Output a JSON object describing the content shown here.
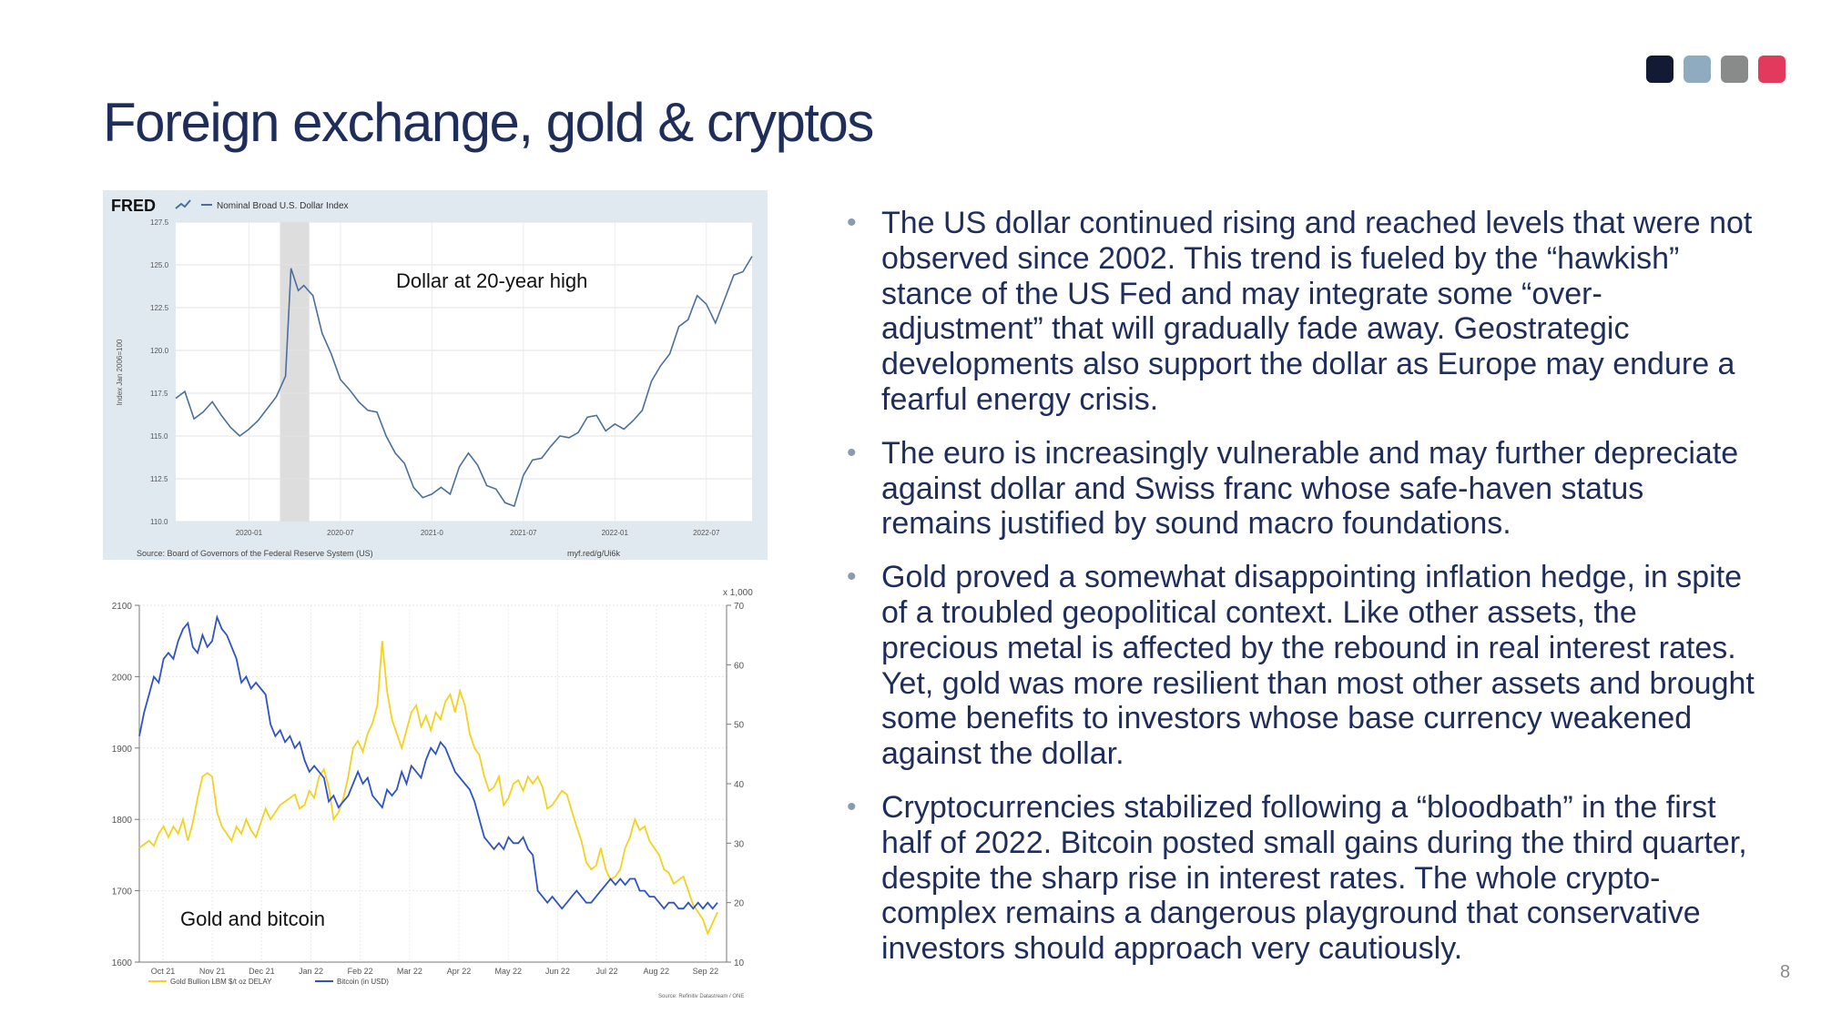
{
  "colors": {
    "swatches": [
      "#131a33",
      "#8eabbf",
      "#888b8a",
      "#e23a5c"
    ],
    "title": "#1f2d5a",
    "fred_line": "#4a6f9d",
    "gold_line": "#f2d21e",
    "bitcoin_line": "#2f52c4"
  },
  "slide": {
    "title": "Foreign exchange, gold & cryptos",
    "page_number": "8",
    "bullets": [
      "The US dollar continued rising and reached levels that were not observed since 2002. This trend is fueled by the “hawkish” stance of the US Fed and may integrate some “over-adjustment” that will gradually fade away. Geostrategic developments also support the dollar as Europe may endure a fearful energy crisis.",
      "The euro is increasingly vulnerable and may further depreciate against dollar and Swiss franc whose safe-haven status remains justified by sound macro foundations.",
      "Gold proved a somewhat disappointing inflation hedge, in spite of a troubled geopolitical context. Like other assets, the precious metal is affected by the rebound in real interest rates. Yet, gold was more resilient than most other assets and brought some benefits to investors whose base currency weakened against the dollar.",
      "Cryptocurrencies stabilized following a “bloodbath” in the first half of 2022. Bitcoin posted small gains during the third quarter, despite the sharp rise in interest rates. The whole crypto-complex remains a dangerous playground that conservative investors should approach very cautiously."
    ]
  },
  "chart_data": [
    {
      "type": "line",
      "brand": "FRED",
      "legend": "Nominal Broad U.S. Dollar Index",
      "annotation": "Dollar at 20-year high",
      "ylabel": "Index Jan 2006=100",
      "source": "Source: Board of Governors of the Federal Reserve System (US)",
      "url": "myf.red/g/Ui6k",
      "ylim": [
        110.0,
        127.5
      ],
      "y_ticks": [
        "127.5",
        "125.0",
        "122.5",
        "120.0",
        "117.5",
        "115.0",
        "112.5",
        "110.0"
      ],
      "x_ticks": [
        "2020-01",
        "2020-07",
        "2021-0",
        "2021-07",
        "2022-01",
        "2022-07"
      ],
      "x_tick_pos": [
        2020.0,
        2020.5,
        2021.0,
        2021.5,
        2022.0,
        2022.5
      ],
      "xlim": [
        2019.6,
        2022.75
      ],
      "recession": [
        2020.17,
        2020.33
      ],
      "x": [
        2019.6,
        2019.65,
        2019.7,
        2019.75,
        2019.8,
        2019.85,
        2019.9,
        2019.95,
        2020.0,
        2020.05,
        2020.1,
        2020.15,
        2020.2,
        2020.23,
        2020.27,
        2020.3,
        2020.35,
        2020.4,
        2020.45,
        2020.5,
        2020.55,
        2020.6,
        2020.65,
        2020.7,
        2020.75,
        2020.8,
        2020.85,
        2020.9,
        2020.95,
        2021.0,
        2021.05,
        2021.1,
        2021.15,
        2021.2,
        2021.25,
        2021.3,
        2021.35,
        2021.4,
        2021.45,
        2021.5,
        2021.55,
        2021.6,
        2021.65,
        2021.7,
        2021.75,
        2021.8,
        2021.85,
        2021.9,
        2021.95,
        2022.0,
        2022.05,
        2022.1,
        2022.15,
        2022.2,
        2022.25,
        2022.3,
        2022.35,
        2022.4,
        2022.45,
        2022.5,
        2022.55,
        2022.6,
        2022.65,
        2022.7,
        2022.75
      ],
      "values": [
        117.2,
        117.6,
        116.0,
        116.4,
        117.0,
        116.2,
        115.5,
        115.0,
        115.4,
        115.9,
        116.6,
        117.3,
        118.5,
        124.8,
        123.5,
        123.8,
        123.2,
        121.0,
        119.8,
        118.3,
        117.7,
        117.0,
        116.5,
        116.4,
        115.0,
        114.0,
        113.4,
        112.0,
        111.4,
        111.6,
        112.0,
        111.6,
        113.2,
        114.0,
        113.3,
        112.1,
        111.9,
        111.1,
        110.9,
        112.7,
        113.6,
        113.7,
        114.4,
        115.0,
        114.9,
        115.2,
        116.1,
        116.2,
        115.3,
        115.7,
        115.4,
        115.9,
        116.5,
        118.2,
        119.1,
        119.8,
        121.4,
        121.8,
        123.2,
        122.7,
        121.6,
        123.0,
        124.4,
        124.6,
        125.5
      ]
    },
    {
      "type": "line",
      "annotation": "Gold and bitcoin",
      "source": "Source: Refinitiv Datastream / ONE",
      "x_ticks": [
        "Oct 21",
        "Nov 21",
        "Dec 21",
        "Jan 22",
        "Feb 22",
        "Mar 22",
        "Apr 22",
        "May 22",
        "Jun 22",
        "Jul 22",
        "Aug 22",
        "Sep 22"
      ],
      "y_left": {
        "ticks": [
          "2100",
          "2000",
          "1900",
          "1800",
          "1700",
          "1600"
        ],
        "ylim": [
          1600,
          2100
        ]
      },
      "y_right": {
        "ticks": [
          "70",
          "60",
          "50",
          "40",
          "30",
          "20",
          "10"
        ],
        "ylim": [
          10,
          70
        ],
        "multiplier": "x 1,000"
      },
      "series": [
        {
          "name": "Gold Bullion LBM $/t oz DELAY",
          "axis": "left",
          "values": [
            1760,
            1765,
            1770,
            1763,
            1780,
            1790,
            1775,
            1790,
            1780,
            1800,
            1770,
            1795,
            1830,
            1860,
            1865,
            1860,
            1810,
            1790,
            1780,
            1770,
            1790,
            1780,
            1800,
            1785,
            1775,
            1795,
            1815,
            1800,
            1810,
            1820,
            1825,
            1830,
            1835,
            1815,
            1820,
            1840,
            1830,
            1860,
            1870,
            1845,
            1800,
            1810,
            1830,
            1860,
            1900,
            1910,
            1895,
            1920,
            1935,
            1960,
            2050,
            1980,
            1940,
            1920,
            1900,
            1925,
            1950,
            1960,
            1930,
            1945,
            1925,
            1950,
            1940,
            1965,
            1975,
            1950,
            1980,
            1960,
            1920,
            1900,
            1890,
            1860,
            1840,
            1845,
            1860,
            1820,
            1830,
            1850,
            1855,
            1840,
            1860,
            1850,
            1860,
            1845,
            1815,
            1820,
            1830,
            1840,
            1835,
            1812,
            1790,
            1770,
            1740,
            1730,
            1735,
            1760,
            1730,
            1715,
            1720,
            1730,
            1760,
            1775,
            1800,
            1785,
            1790,
            1770,
            1760,
            1750,
            1730,
            1725,
            1710,
            1715,
            1720,
            1700,
            1680,
            1670,
            1660,
            1640,
            1655,
            1670
          ]
        },
        {
          "name": "Bitcoin (in USD)",
          "axis": "right",
          "values": [
            48,
            52,
            55,
            58,
            57,
            61,
            62,
            61,
            64,
            66,
            67,
            63,
            62,
            65,
            63,
            64,
            68,
            66,
            65,
            63,
            61,
            57,
            58,
            56,
            57,
            56,
            55,
            50,
            48,
            49,
            47,
            48,
            46,
            47,
            44,
            42,
            43,
            42,
            41,
            37,
            38,
            36,
            37,
            38,
            40,
            42,
            40,
            41,
            38,
            37,
            36,
            39,
            38,
            39,
            42,
            40,
            43,
            42,
            41,
            44,
            46,
            45,
            47,
            46,
            44,
            42,
            41,
            40,
            39,
            37,
            34,
            31,
            30,
            29,
            30,
            29,
            31,
            30,
            30,
            31,
            29,
            28,
            22,
            21,
            20,
            21,
            20,
            19,
            20,
            21,
            22,
            21,
            20,
            20,
            21,
            22,
            23,
            24,
            23,
            24,
            23,
            24,
            24,
            22,
            22,
            21,
            21,
            20,
            19,
            20,
            20,
            19,
            19,
            20,
            19,
            20,
            19,
            20,
            19,
            20
          ]
        }
      ]
    }
  ]
}
